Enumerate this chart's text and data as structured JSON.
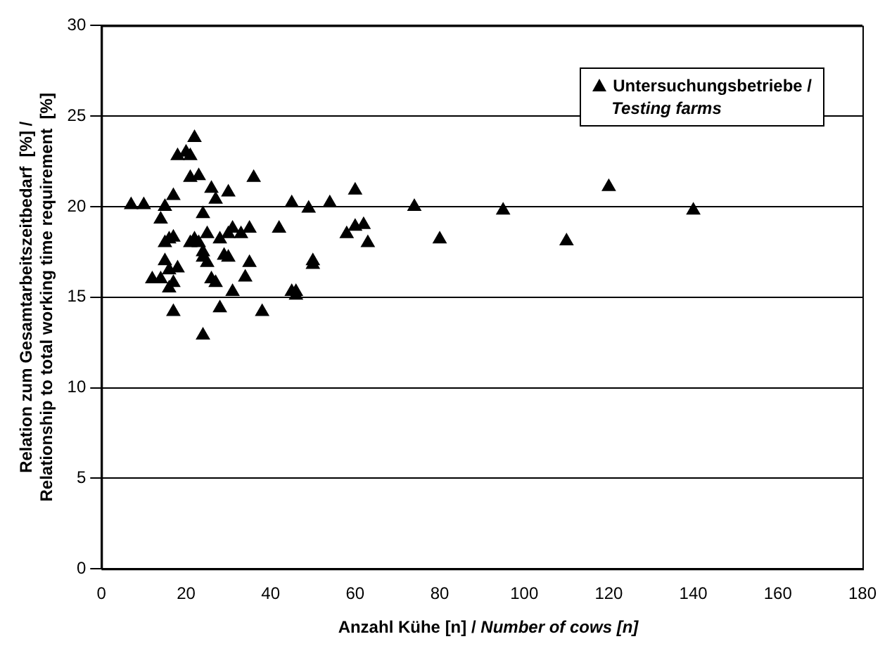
{
  "chart_data": {
    "type": "scatter",
    "xlabel": "Anzahl Kühe [n] / Number of cows [n]",
    "ylabel": "Relation zum Gesamtarbeitszeitbedarf  [%] / Relationship to total working time requirement  [%]",
    "xlim": [
      0,
      180
    ],
    "xticks": [
      0,
      20,
      40,
      60,
      80,
      100,
      120,
      140,
      160,
      180
    ],
    "ylim": [
      0,
      30
    ],
    "yticks": [
      0,
      5,
      10,
      15,
      20,
      25,
      30
    ],
    "grid": "y",
    "legend": "top right",
    "marker": "triangle",
    "series": [
      {
        "name": "Untersuchungsbetriebe / Testing farms",
        "color": "#000000",
        "x": [
          7,
          10,
          12,
          14,
          15,
          15,
          14,
          15,
          16,
          16,
          16,
          17,
          17,
          17,
          17,
          18,
          18,
          20,
          21,
          21,
          21,
          22,
          22,
          23,
          23,
          24,
          24,
          24,
          24,
          25,
          25,
          26,
          26,
          27,
          27,
          28,
          28,
          29,
          30,
          30,
          30,
          31,
          31,
          33,
          34,
          35,
          35,
          36,
          38,
          42,
          45,
          45,
          46,
          46,
          49,
          50,
          50,
          54,
          58,
          60,
          60,
          62,
          63,
          74,
          80,
          95,
          110,
          120,
          140
        ],
        "values": [
          20.1,
          20.1,
          16,
          16,
          17,
          18,
          19.3,
          20,
          15.5,
          16.5,
          18.2,
          15.8,
          14.2,
          18.3,
          20.6,
          16.6,
          22.8,
          23,
          18,
          21.6,
          22.8,
          23.8,
          18.2,
          18,
          21.7,
          17.5,
          17.2,
          12.9,
          19.6,
          16.9,
          18.5,
          21,
          16,
          20.4,
          15.8,
          18.2,
          14.4,
          17.3,
          17.2,
          18.5,
          20.8,
          18.8,
          15.3,
          18.5,
          16.1,
          18.8,
          16.9,
          21.6,
          14.2,
          18.8,
          20.2,
          15.3,
          15.1,
          15.3,
          19.9,
          16.8,
          17,
          20.2,
          18.5,
          18.9,
          20.9,
          19,
          18,
          20,
          18.2,
          19.8,
          18.1,
          21.1,
          19.8
        ]
      }
    ]
  }
}
